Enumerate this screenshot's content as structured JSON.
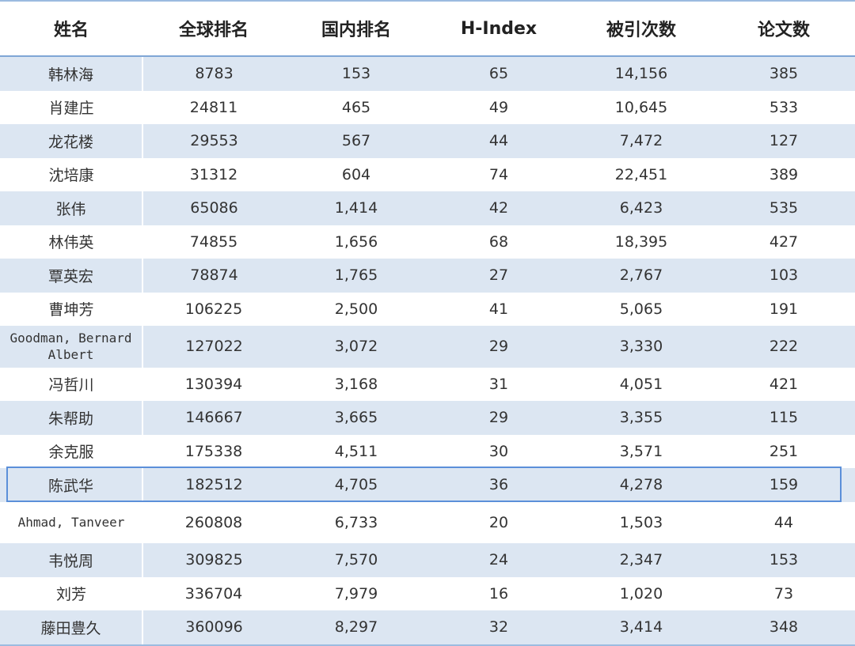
{
  "table": {
    "columns": [
      "姓名",
      "全球排名",
      "国内排名",
      "H-Index",
      "被引次数",
      "论文数"
    ],
    "selected_row": 12,
    "rows": [
      [
        "韩林海",
        "8783",
        "153",
        "65",
        "14,156",
        "385"
      ],
      [
        "肖建庄",
        "24811",
        "465",
        "49",
        "10,645",
        "533"
      ],
      [
        "龙花楼",
        "29553",
        "567",
        "44",
        "7,472",
        "127"
      ],
      [
        "沈培康",
        "31312",
        "604",
        "74",
        "22,451",
        "389"
      ],
      [
        "张伟",
        "65086",
        "1,414",
        "42",
        "6,423",
        "535"
      ],
      [
        "林伟英",
        "74855",
        "1,656",
        "68",
        "18,395",
        "427"
      ],
      [
        "覃英宏",
        "78874",
        "1,765",
        "27",
        "2,767",
        "103"
      ],
      [
        "曹坤芳",
        "106225",
        "2,500",
        "41",
        "5,065",
        "191"
      ],
      [
        "Goodman, Bernard Albert",
        "127022",
        "3,072",
        "29",
        "3,330",
        "222"
      ],
      [
        "冯哲川",
        "130394",
        "3,168",
        "31",
        "4,051",
        "421"
      ],
      [
        "朱帮助",
        "146667",
        "3,665",
        "29",
        "3,355",
        "115"
      ],
      [
        "余克服",
        "175338",
        "4,511",
        "30",
        "3,571",
        "251"
      ],
      [
        "陈武华",
        "182512",
        "4,705",
        "36",
        "4,278",
        "159"
      ],
      [
        "Ahmad, Tanveer",
        "260808",
        "6,733",
        "20",
        "1,503",
        "44"
      ],
      [
        "韦悦周",
        "309825",
        "7,570",
        "24",
        "2,347",
        "153"
      ],
      [
        "刘芳",
        "336704",
        "7,979",
        "16",
        "1,020",
        "73"
      ],
      [
        "藤田豊久",
        "360096",
        "8,297",
        "32",
        "3,414",
        "348"
      ]
    ]
  }
}
